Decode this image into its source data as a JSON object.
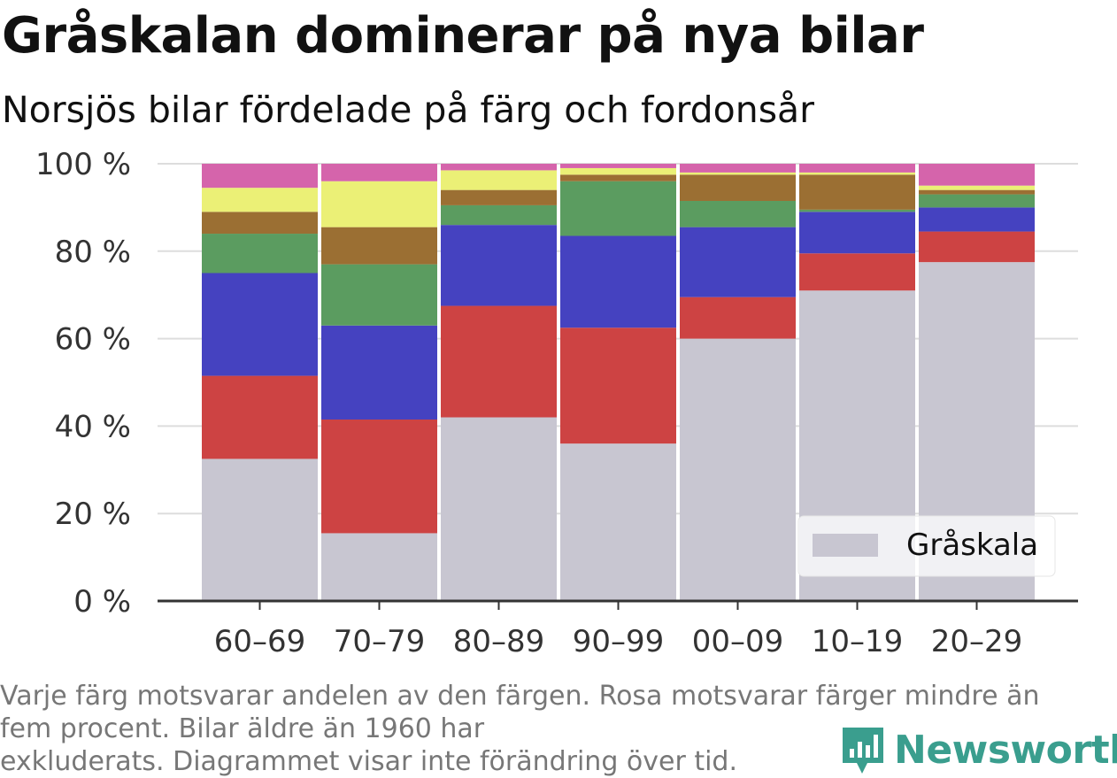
{
  "title": "Gråskalan dominerar på nya bilar",
  "subtitle": "Norsjös bilar fördelade på färg och fordonsår",
  "footnote_line1": "Varje färg motsvarar andelen av den färgen. Rosa motsvarar färger mindre än",
  "footnote_line2": "fem procent. Bilar äldre än 1960 har",
  "footnote_line3": "exkluderats. Diagrammet visar inte förändring över tid.",
  "brand": "Newsworthy",
  "colors": {
    "brand": "#3a9e8e",
    "grid": "#dddddd",
    "axis": "#333333"
  },
  "chart_data": {
    "type": "bar",
    "stacked": true,
    "categories": [
      "60–69",
      "70–79",
      "80–89",
      "90–99",
      "00–09",
      "10–19",
      "20–29"
    ],
    "ylim": [
      0,
      100
    ],
    "yticks": [
      0,
      20,
      40,
      60,
      80,
      100
    ],
    "ytick_labels": [
      "0 %",
      "20 %",
      "40 %",
      "60 %",
      "80 %",
      "100 %"
    ],
    "grid": true,
    "legend_position": "bottom-right",
    "series": [
      {
        "name": "Gråskala",
        "color": "#c8c6d1",
        "values": [
          32.5,
          15.5,
          42,
          36,
          60,
          71,
          77.5
        ]
      },
      {
        "color": "#cd4343",
        "values": [
          19,
          26,
          25.5,
          26.5,
          9.5,
          8.5,
          7
        ]
      },
      {
        "color": "#4542c0",
        "values": [
          23.5,
          21.5,
          18.5,
          21,
          16,
          9.5,
          5.5
        ]
      },
      {
        "color": "#5b9c60",
        "values": [
          9,
          14,
          4.5,
          12.5,
          6,
          0.5,
          3
        ]
      },
      {
        "color": "#9b6f33",
        "values": [
          5,
          8.5,
          3.5,
          1.5,
          6,
          8,
          1
        ]
      },
      {
        "color": "#ebf076",
        "values": [
          5.5,
          10.5,
          4.5,
          1.5,
          0.5,
          0.5,
          1
        ]
      },
      {
        "color": "#d564ab",
        "values": [
          5.5,
          4,
          1.5,
          1,
          2,
          2,
          5
        ]
      }
    ]
  }
}
